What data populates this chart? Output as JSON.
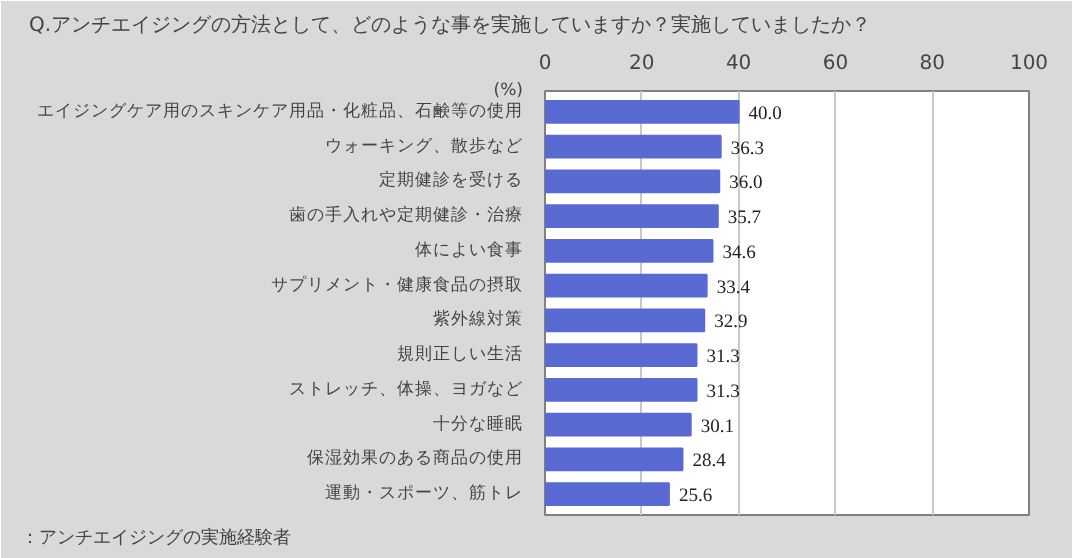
{
  "chart_data": {
    "type": "bar",
    "orientation": "horizontal",
    "title": "Q.アンチエイジングの方法として、どのような事を実施していますか？実施していましたか？",
    "xlabel": "(%)",
    "annotations": [
      "：アンチエイジングの実施経験者"
    ],
    "categories": [
      "エイジングケア用のスキンケア用品・化粧品、石鹸等の使用",
      "ウォーキング、散歩など",
      "定期健診を受ける",
      "歯の手入れや定期健診・治療",
      "体によい食事",
      "サプリメント・健康食品の摂取",
      "紫外線対策",
      "規則正しい生活",
      "ストレッチ、体操、ヨガなど",
      "十分な睡眠",
      "保湿効果のある商品の使用",
      "運動・スポーツ、筋トレ"
    ],
    "values": [
      40.0,
      36.3,
      36.0,
      35.7,
      34.6,
      33.4,
      32.9,
      31.3,
      31.3,
      30.1,
      28.4,
      25.6
    ],
    "color": "#5a6ad3",
    "xlim": [
      0,
      100
    ],
    "xticks": [
      0,
      20,
      40,
      60,
      80,
      100
    ],
    "value_labels": [
      "40.0",
      "36.3",
      "36.0",
      "35.7",
      "34.6",
      "33.4",
      "32.9",
      "31.3",
      "31.3",
      "30.1",
      "28.4",
      "25.6"
    ],
    "grid": "x"
  }
}
